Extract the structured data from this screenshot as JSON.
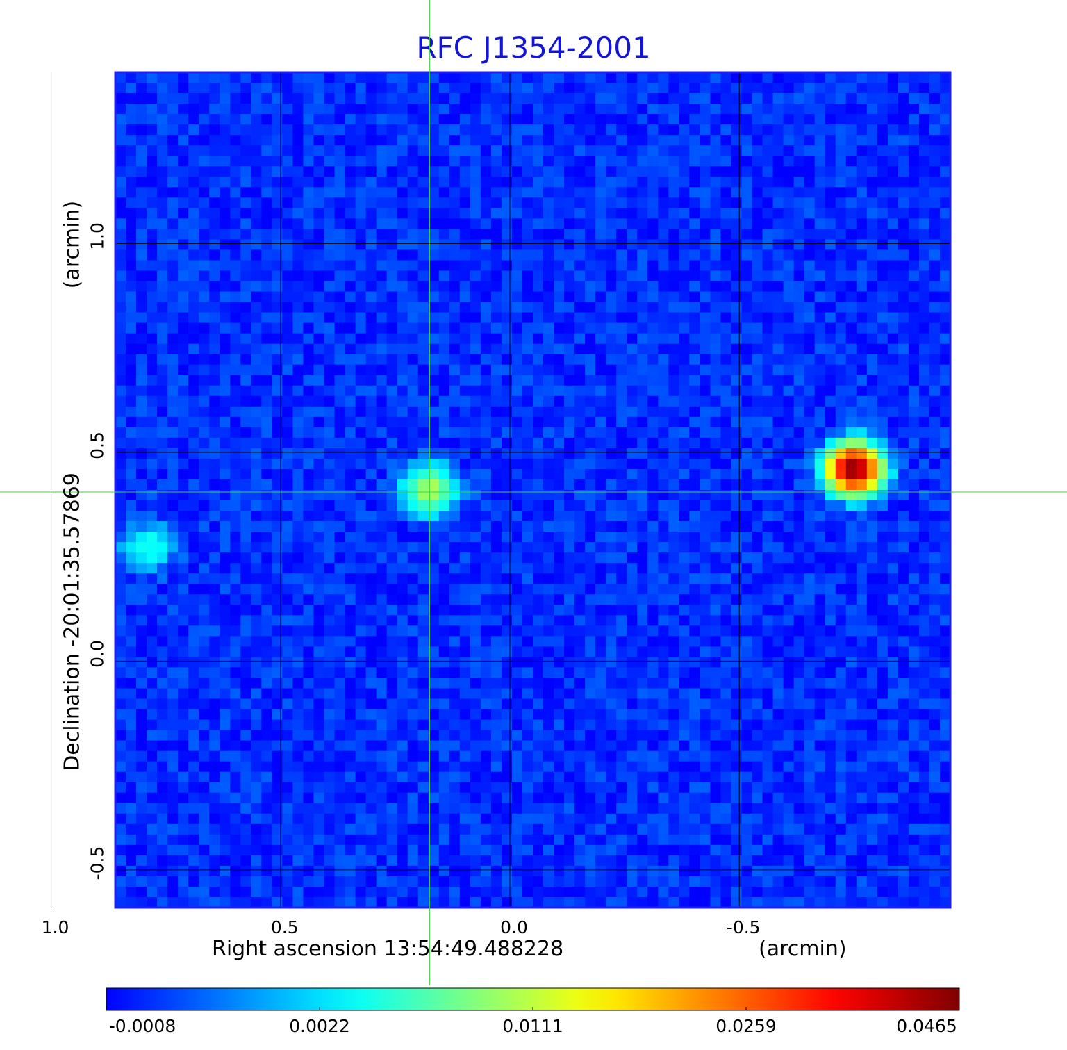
{
  "chart_data": {
    "type": "heatmap",
    "title": "RFC J1354-2001",
    "xlabel": "Right ascension  13:54:49.488228",
    "x_unit": "(arcmin)",
    "ylabel": "Declination  -20:01:35.57869",
    "y_unit": "(arcmin)",
    "xlim": [
      0.86,
      -0.96
    ],
    "ylim": [
      -0.59,
      1.41
    ],
    "x_ticks": [
      {
        "value": 1.0,
        "label": "1.0"
      },
      {
        "value": 0.5,
        "label": "0.5"
      },
      {
        "value": 0.0,
        "label": "0.0"
      },
      {
        "value": -0.5,
        "label": "-0.5"
      }
    ],
    "y_ticks": [
      {
        "value": 1.0,
        "label": "1.0"
      },
      {
        "value": 0.5,
        "label": "0.5"
      },
      {
        "value": 0.0,
        "label": "0.0"
      },
      {
        "value": -0.5,
        "label": "-0.5"
      }
    ],
    "grid": true,
    "crosshair": {
      "x": 0.175,
      "y": 0.405,
      "color": "#33dd33"
    },
    "colormap": "jet",
    "colorbar": {
      "min": -0.0008,
      "max": 0.0465,
      "ticks": [
        "-0.0008",
        "0.0022",
        "0.0111",
        "0.0259",
        "0.0465"
      ]
    },
    "sources": [
      {
        "ra_arcmin": 0.79,
        "dec_arcmin": 0.275,
        "peak": 0.0045
      },
      {
        "ra_arcmin": 0.175,
        "dec_arcmin": 0.41,
        "peak": 0.0111
      },
      {
        "ra_arcmin": -0.75,
        "dec_arcmin": 0.46,
        "peak": 0.0465
      }
    ],
    "background_level": -0.0002
  },
  "colors": {
    "title": "#1414d4",
    "frame": "#2020ee",
    "grid": "#000000",
    "crosshair": "#33dd33"
  }
}
